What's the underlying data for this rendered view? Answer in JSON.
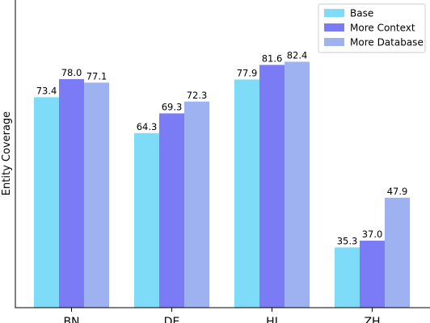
{
  "chart_data": {
    "type": "bar",
    "ylabel": "Entity Coverage",
    "xlabel": "",
    "categories": [
      "BN",
      "DE",
      "HI",
      "ZH"
    ],
    "series": [
      {
        "name": "Base",
        "values": [
          73.4,
          64.3,
          77.9,
          35.3
        ],
        "color": "#7fdcf8"
      },
      {
        "name": "More Context",
        "values": [
          78.0,
          69.3,
          81.6,
          37.0
        ],
        "color": "#7b7bf5"
      },
      {
        "name": "More Database",
        "values": [
          77.1,
          72.3,
          82.4,
          47.9
        ],
        "color": "#9eb1f0"
      }
    ],
    "ylim": [
      20,
      85
    ],
    "grid": false,
    "legend_position": "top-right"
  }
}
